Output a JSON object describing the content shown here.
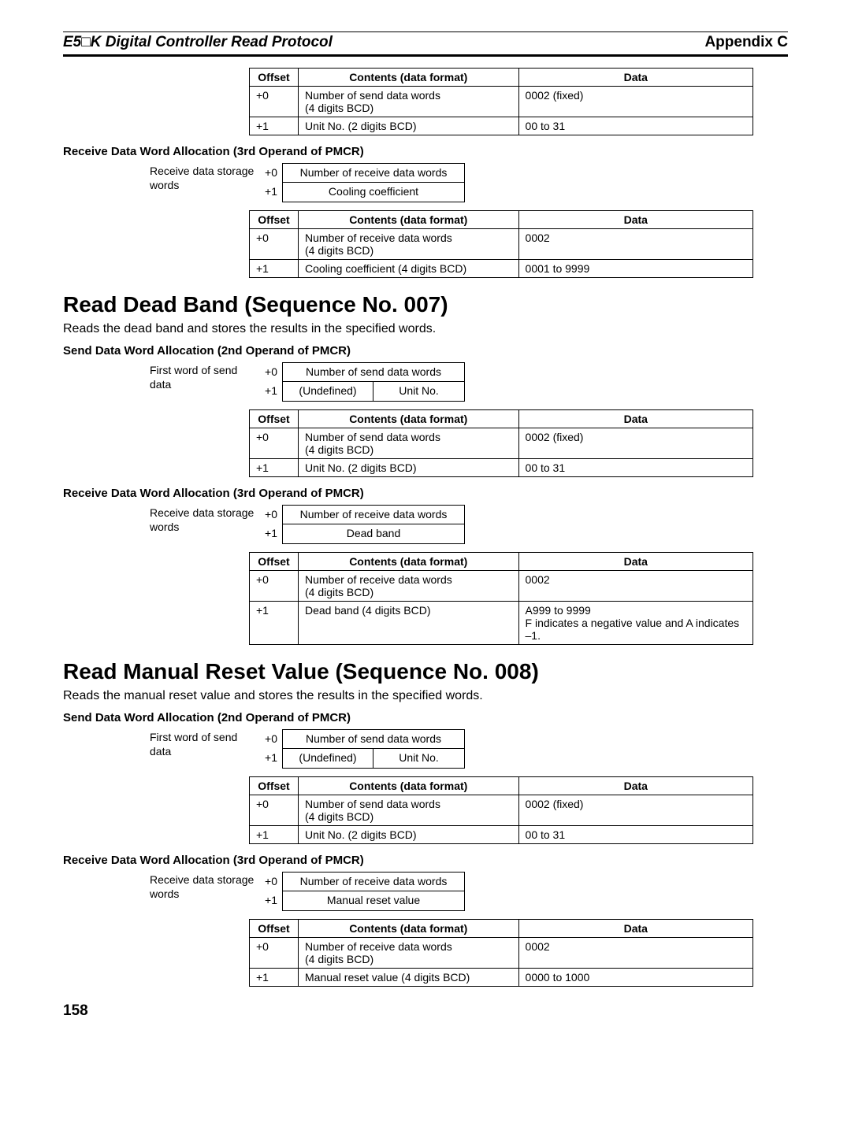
{
  "header": {
    "left_prefix": "E5",
    "left_box": "□",
    "left_suffix": "K Digital Controller Read Protocol",
    "right": "Appendix C"
  },
  "top_table": {
    "headers": [
      "Offset",
      "Contents (data format)",
      "Data"
    ],
    "rows": [
      [
        "+0",
        "Number of send data words\n(4 digits BCD)",
        "0002 (fixed)"
      ],
      [
        "+1",
        "Unit No. (2 digits BCD)",
        "00 to 31"
      ]
    ]
  },
  "top_recv_heading": "Receive Data Word Allocation (3rd Operand of PMCR)",
  "top_recv_diagram": {
    "label": "Receive data storage words",
    "offsets": [
      "+0",
      "+1"
    ],
    "rows": [
      {
        "cells": [
          "Number of receive data words"
        ],
        "split": false
      },
      {
        "cells": [
          "Cooling coefficient"
        ],
        "split": false
      }
    ]
  },
  "top_recv_table": {
    "headers": [
      "Offset",
      "Contents (data format)",
      "Data"
    ],
    "rows": [
      [
        "+0",
        "Number of receive data words\n(4 digits BCD)",
        "0002"
      ],
      [
        "+1",
        "Cooling coefficient (4 digits BCD)",
        "0001 to 9999"
      ]
    ]
  },
  "sec007": {
    "title": "Read Dead Band (Sequence No. 007)",
    "desc": "Reads the dead band and stores the results in the specified words.",
    "send_heading": "Send Data Word Allocation (2nd Operand of PMCR)",
    "send_diagram": {
      "label": "First word of send data",
      "offsets": [
        "+0",
        "+1"
      ],
      "rows": [
        {
          "cells": [
            "Number of send data words"
          ],
          "split": false
        },
        {
          "cells": [
            "(Undefined)",
            "Unit No."
          ],
          "split": true
        }
      ]
    },
    "send_table": {
      "headers": [
        "Offset",
        "Contents (data format)",
        "Data"
      ],
      "rows": [
        [
          "+0",
          "Number of send data words\n(4 digits BCD)",
          "0002 (fixed)"
        ],
        [
          "+1",
          "Unit No. (2 digits BCD)",
          "00 to 31"
        ]
      ]
    },
    "recv_heading": "Receive Data Word Allocation (3rd Operand of PMCR)",
    "recv_diagram": {
      "label": "Receive data storage words",
      "offsets": [
        "+0",
        "+1"
      ],
      "rows": [
        {
          "cells": [
            "Number of receive data words"
          ],
          "split": false
        },
        {
          "cells": [
            "Dead band"
          ],
          "split": false
        }
      ]
    },
    "recv_table": {
      "headers": [
        "Offset",
        "Contents (data format)",
        "Data"
      ],
      "rows": [
        [
          "+0",
          "Number of receive data words\n(4 digits BCD)",
          "0002"
        ],
        [
          "+1",
          "Dead band (4 digits BCD)",
          "A999 to 9999\nF indicates a negative value and A indicates –1."
        ]
      ]
    }
  },
  "sec008": {
    "title": "Read Manual Reset Value (Sequence No. 008)",
    "desc": "Reads the manual reset value and stores the results in the specified words.",
    "send_heading": "Send Data Word Allocation (2nd Operand of PMCR)",
    "send_diagram": {
      "label": "First word of send data",
      "offsets": [
        "+0",
        "+1"
      ],
      "rows": [
        {
          "cells": [
            "Number of send data words"
          ],
          "split": false
        },
        {
          "cells": [
            "(Undefined)",
            "Unit No."
          ],
          "split": true
        }
      ]
    },
    "send_table": {
      "headers": [
        "Offset",
        "Contents (data format)",
        "Data"
      ],
      "rows": [
        [
          "+0",
          "Number of send data words\n(4 digits BCD)",
          "0002 (fixed)"
        ],
        [
          "+1",
          "Unit No. (2 digits BCD)",
          "00 to 31"
        ]
      ]
    },
    "recv_heading": "Receive Data Word Allocation (3rd Operand of PMCR)",
    "recv_diagram": {
      "label": "Receive data storage words",
      "offsets": [
        "+0",
        "+1"
      ],
      "rows": [
        {
          "cells": [
            "Number of receive data words"
          ],
          "split": false
        },
        {
          "cells": [
            "Manual reset value"
          ],
          "split": false
        }
      ]
    },
    "recv_table": {
      "headers": [
        "Offset",
        "Contents (data format)",
        "Data"
      ],
      "rows": [
        [
          "+0",
          "Number of receive data words\n(4 digits BCD)",
          "0002"
        ],
        [
          "+1",
          "Manual reset value (4 digits BCD)",
          "0000 to 1000"
        ]
      ]
    }
  },
  "page_number": "158"
}
